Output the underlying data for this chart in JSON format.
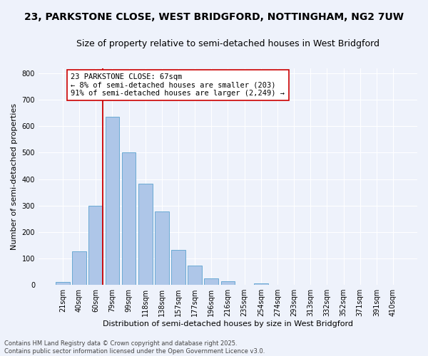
{
  "title_line1": "23, PARKSTONE CLOSE, WEST BRIDGFORD, NOTTINGHAM, NG2 7UW",
  "title_line2": "Size of property relative to semi-detached houses in West Bridgford",
  "xlabel": "Distribution of semi-detached houses by size in West Bridgford",
  "ylabel": "Number of semi-detached properties",
  "categories": [
    "21sqm",
    "40sqm",
    "60sqm",
    "79sqm",
    "99sqm",
    "118sqm",
    "138sqm",
    "157sqm",
    "177sqm",
    "196sqm",
    "216sqm",
    "235sqm",
    "254sqm",
    "274sqm",
    "293sqm",
    "313sqm",
    "332sqm",
    "352sqm",
    "371sqm",
    "391sqm",
    "410sqm"
  ],
  "values": [
    10,
    128,
    300,
    635,
    500,
    383,
    278,
    133,
    73,
    25,
    13,
    0,
    5,
    0,
    0,
    0,
    0,
    0,
    0,
    0,
    0
  ],
  "bar_color": "#aec6e8",
  "bar_edge_color": "#6aaad4",
  "vline_color": "#cc0000",
  "annotation_text": "23 PARKSTONE CLOSE: 67sqm\n← 8% of semi-detached houses are smaller (203)\n91% of semi-detached houses are larger (2,249) →",
  "annotation_box_color": "#ffffff",
  "annotation_box_edge": "#cc0000",
  "ylim": [
    0,
    820
  ],
  "yticks": [
    0,
    100,
    200,
    300,
    400,
    500,
    600,
    700,
    800
  ],
  "background_color": "#eef2fb",
  "grid_color": "#ffffff",
  "footer": "Contains HM Land Registry data © Crown copyright and database right 2025.\nContains public sector information licensed under the Open Government Licence v3.0.",
  "title_fontsize": 10,
  "subtitle_fontsize": 9,
  "axis_label_fontsize": 8,
  "tick_fontsize": 7,
  "annotation_fontsize": 7.5,
  "footer_fontsize": 6
}
